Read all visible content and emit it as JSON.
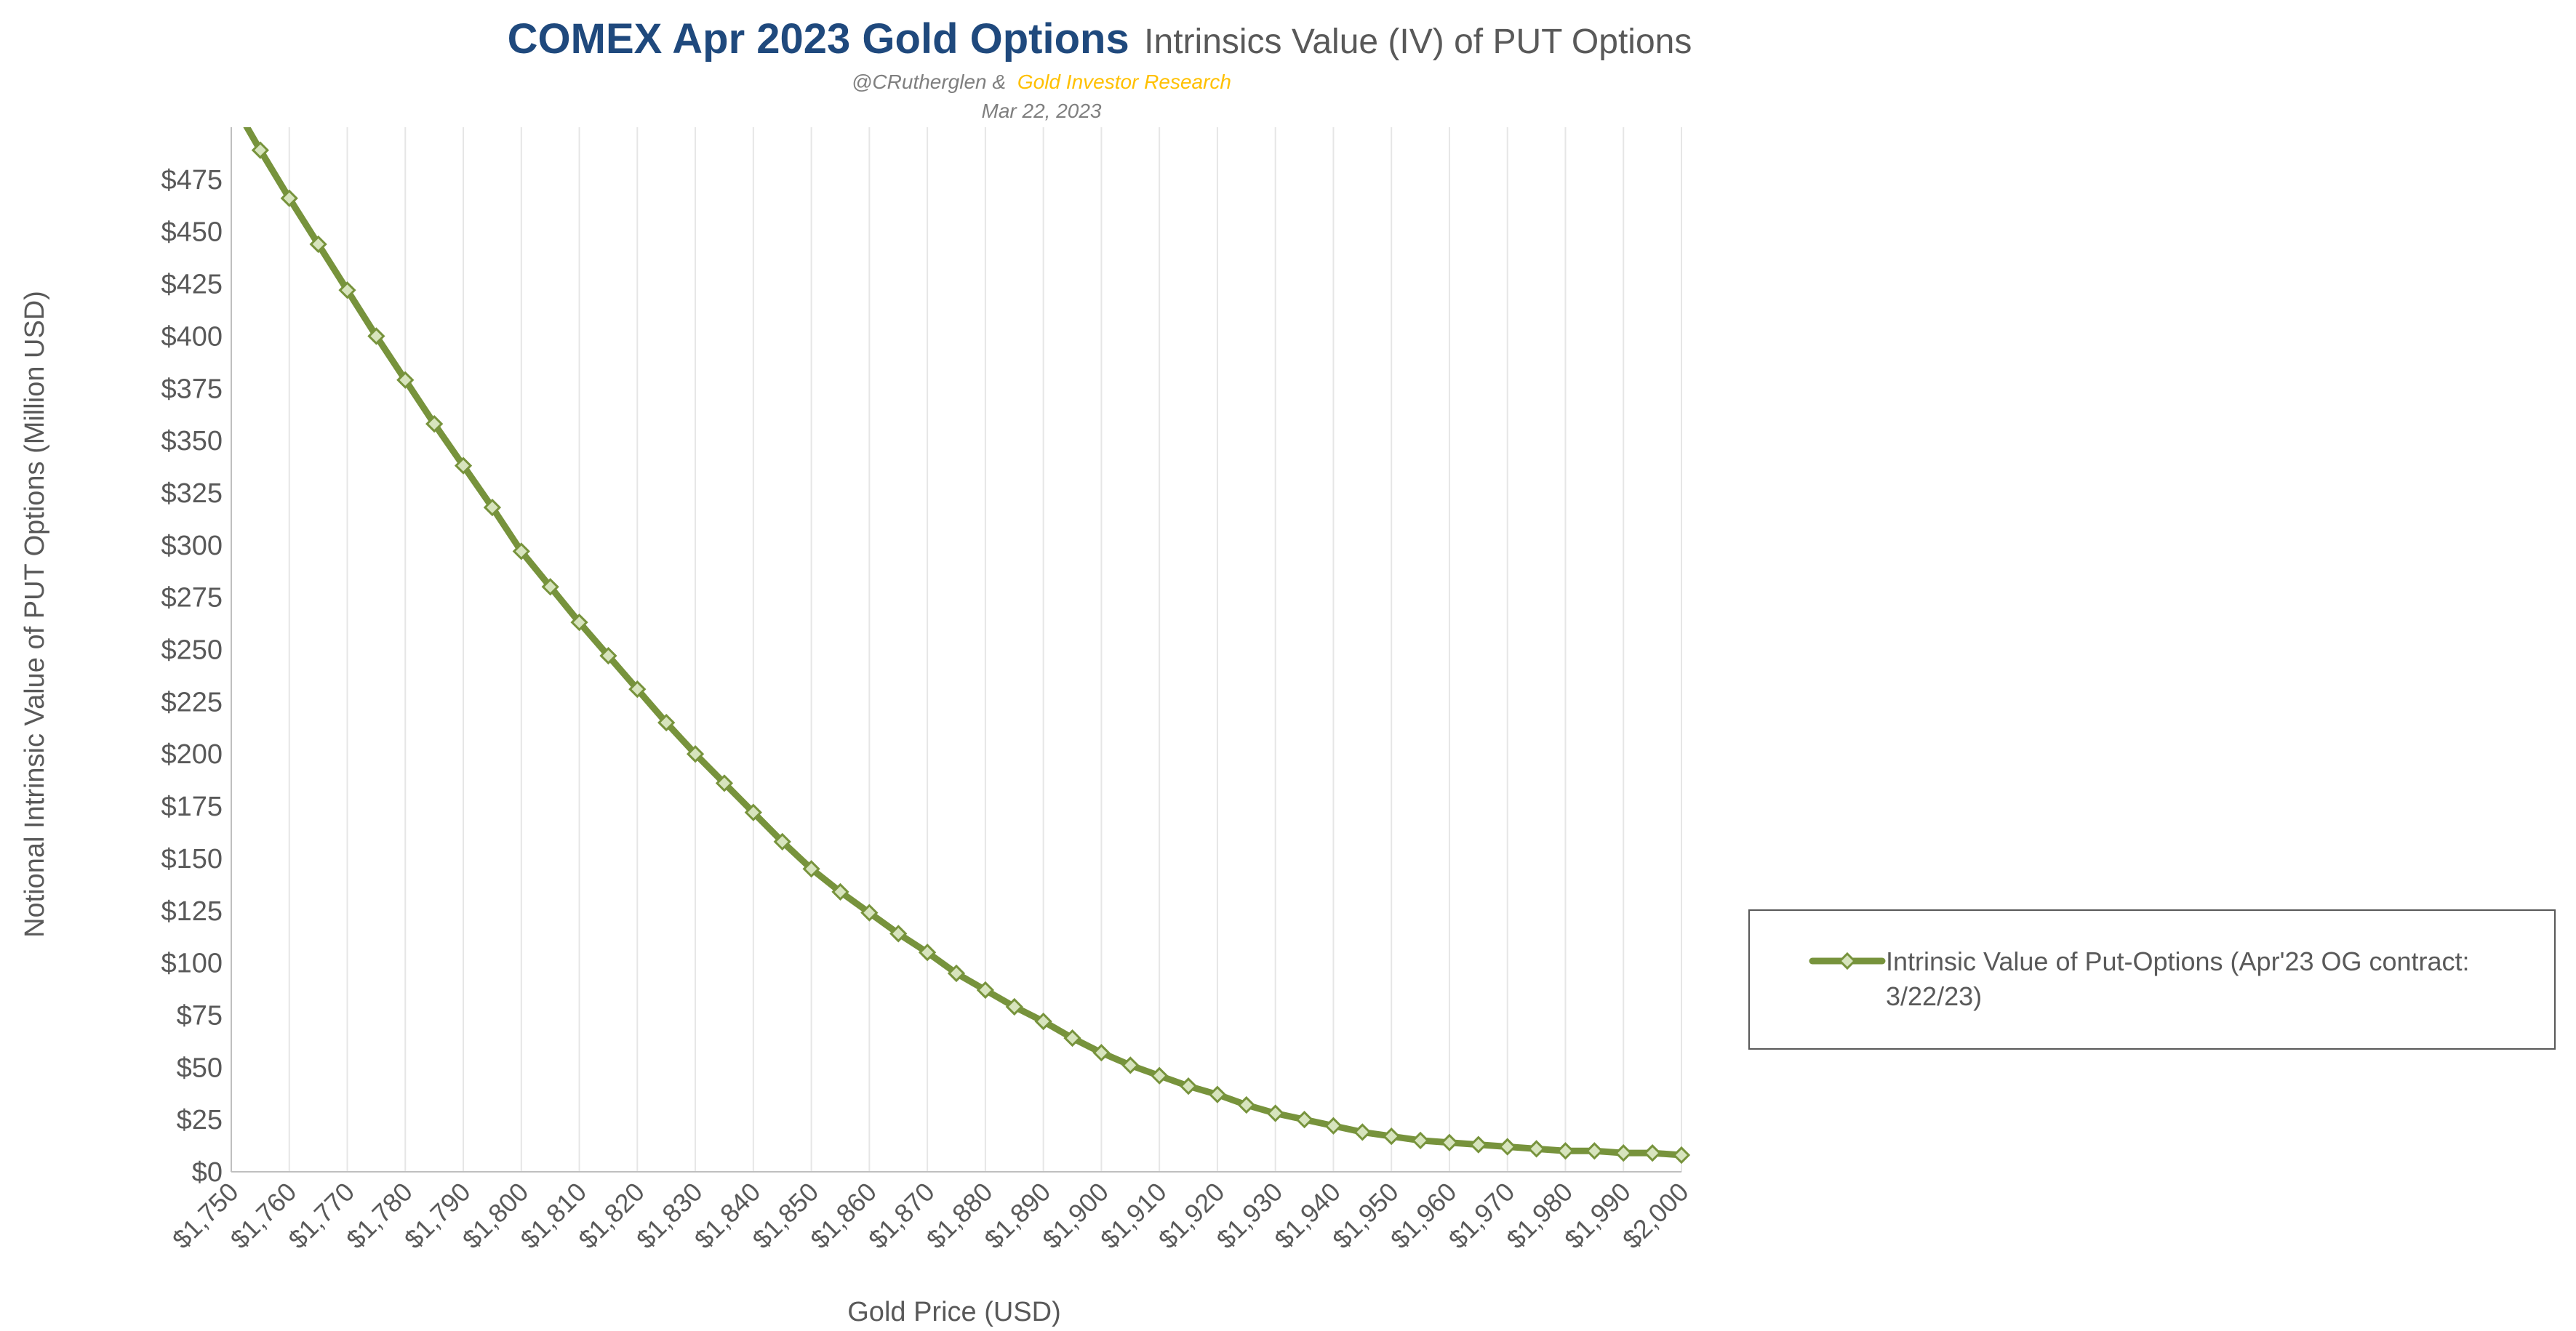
{
  "header": {
    "title_main": "COMEX Apr 2023 Gold Options",
    "title_rest": "Intrinsics Value (IV) of PUT Options",
    "credit_handle": "@CRutherglen &",
    "credit_org": "Gold Investor Research",
    "date": "Mar 22, 2023"
  },
  "chart_data": {
    "type": "line",
    "xlabel": "Gold Price (USD)",
    "ylabel": "Notional Intrinsic Value of PUT Options (Million USD)",
    "xlim": [
      1750,
      2000
    ],
    "ylim": [
      0,
      500
    ],
    "y_tick_values": [
      0,
      25,
      50,
      75,
      100,
      125,
      150,
      175,
      200,
      225,
      250,
      275,
      300,
      325,
      350,
      375,
      400,
      425,
      450,
      475
    ],
    "y_tick_labels": [
      "$0",
      "$25",
      "$50",
      "$75",
      "$100",
      "$125",
      "$150",
      "$175",
      "$200",
      "$225",
      "$250",
      "$275",
      "$300",
      "$325",
      "$350",
      "$375",
      "$400",
      "$425",
      "$450",
      "$475"
    ],
    "x_tick_values": [
      1750,
      1760,
      1770,
      1780,
      1790,
      1800,
      1810,
      1820,
      1830,
      1840,
      1850,
      1860,
      1870,
      1880,
      1890,
      1900,
      1910,
      1920,
      1930,
      1940,
      1950,
      1960,
      1970,
      1980,
      1990,
      2000
    ],
    "x_tick_labels": [
      "$1,750",
      "$1,760",
      "$1,770",
      "$1,780",
      "$1,790",
      "$1,800",
      "$1,810",
      "$1,820",
      "$1,830",
      "$1,840",
      "$1,850",
      "$1,860",
      "$1,870",
      "$1,880",
      "$1,890",
      "$1,900",
      "$1,910",
      "$1,920",
      "$1,930",
      "$1,940",
      "$1,950",
      "$1,960",
      "$1,970",
      "$1,980",
      "$1,990",
      "$2,000"
    ],
    "grid": "vertical",
    "legend_position": "right",
    "series": [
      {
        "name": "Intrinsic Value of Put-Options (Apr'23 OG contract: 3/22/23)",
        "color": "#77933c",
        "marker": "diamond",
        "x": [
          1750,
          1755,
          1760,
          1765,
          1770,
          1775,
          1780,
          1785,
          1790,
          1795,
          1800,
          1805,
          1810,
          1815,
          1820,
          1825,
          1830,
          1835,
          1840,
          1845,
          1850,
          1855,
          1860,
          1865,
          1870,
          1875,
          1880,
          1885,
          1890,
          1895,
          1900,
          1905,
          1910,
          1915,
          1920,
          1925,
          1930,
          1935,
          1940,
          1945,
          1950,
          1955,
          1960,
          1965,
          1970,
          1975,
          1980,
          1985,
          1990,
          1995,
          2000
        ],
        "y": [
          513,
          489,
          466,
          444,
          422,
          400,
          379,
          358,
          338,
          318,
          297,
          280,
          263,
          247,
          231,
          215,
          200,
          186,
          172,
          158,
          145,
          134,
          124,
          114,
          105,
          95,
          87,
          79,
          72,
          64,
          57,
          51,
          46,
          41,
          37,
          32,
          28,
          25,
          22,
          19,
          17,
          15,
          14,
          13,
          12,
          11,
          10,
          10,
          9,
          9,
          8
        ]
      }
    ]
  }
}
